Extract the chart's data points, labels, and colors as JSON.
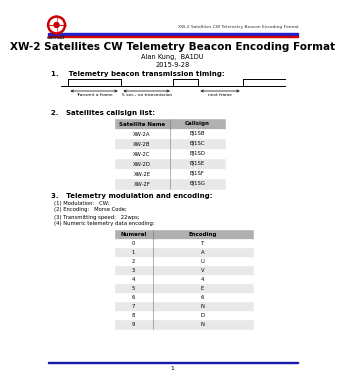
{
  "title": "XW-2 Satellites CW Telemetry Beacon Encoding Format",
  "author": "Alan Kung,  BA1DU",
  "date": "2015-9-28",
  "header_text": "XW-2 Satellites CW Telemetry Beacon Encoding Format",
  "section1": "1.    Telemetry beacon transmission timing:",
  "section2": "2.   Satellites callsign list:",
  "section3": "3.   Telemetry modulation and encoding:",
  "modulation_items": [
    "(1) Modulation:   CW;",
    "(2) Encoding:   Morse Code;",
    "(3) Transmitting speed:   22wps;",
    "(4) Numeric telemetry data encoding:"
  ],
  "callsign_headers": [
    "Satellite Name",
    "Callsign"
  ],
  "callsign_data": [
    [
      "XW-2A",
      "BJ1SB"
    ],
    [
      "XW-2B",
      "BJ1SC"
    ],
    [
      "XW-2C",
      "BJ1SD"
    ],
    [
      "XW-2D",
      "BJ1SE"
    ],
    [
      "XW-2E",
      "BJ1SF"
    ],
    [
      "XW-2F",
      "BJ1SG"
    ]
  ],
  "encoding_headers": [
    "Numeral",
    "Encoding"
  ],
  "encoding_data": [
    [
      "0",
      "T"
    ],
    [
      "1",
      "A"
    ],
    [
      "2",
      "U"
    ],
    [
      "3",
      "V"
    ],
    [
      "4",
      "4"
    ],
    [
      "5",
      "E"
    ],
    [
      "6",
      "6"
    ],
    [
      "7",
      "N"
    ],
    [
      "8",
      "D"
    ],
    [
      "9",
      "N"
    ]
  ],
  "bg_color": "#ffffff",
  "table_header_bg": "#b0b0b0",
  "table_row_bg": "#ffffff",
  "table_alt_bg": "#e8e8e8",
  "blue_line_color": "#1a1aaa",
  "red_color": "#cc0000",
  "header_line_blue": "#2222cc",
  "header_line_red": "#cc0000"
}
